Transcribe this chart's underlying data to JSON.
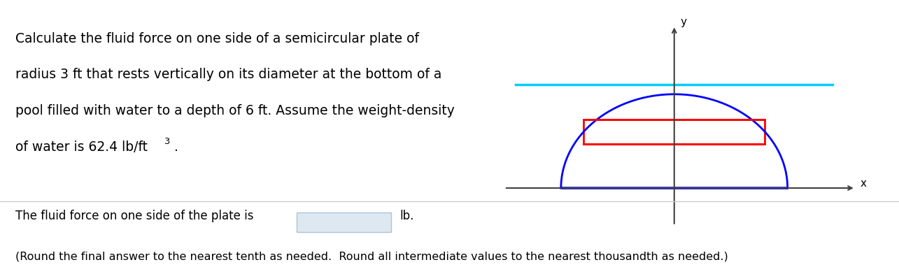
{
  "main_text_line1": "Calculate the fluid force on one side of a semicircular plate of",
  "main_text_line2": "radius 3 ft that rests vertically on its diameter at the bottom of a",
  "main_text_line3": "pool filled with water to a depth of 6 ft. Assume the weight-density",
  "main_text_line4_plain": "of water is 62.4 lb/ft",
  "main_text_line4_super": "3",
  "main_text_line4_end": ".",
  "bottom_text1_pre": "The fluid force on one side of the plate is",
  "bottom_text1_post": "lb.",
  "bottom_text2": "(Round the final answer to the nearest tenth as needed.  Round all intermediate values to the nearest thousandth as needed.)",
  "bg_color": "#ffffff",
  "text_color": "#000000",
  "semicircle_color": "#0000ff",
  "water_line_color": "#00ccff",
  "rect_fill_color": "#ff0000",
  "rect_edge_color": "#ff0000",
  "axis_color": "#404040",
  "input_box_color": "#dde8f0",
  "input_box_edge_color": "#aac4d8",
  "divider_color": "#cccccc",
  "font_size_main": 13.5,
  "font_size_bottom": 12
}
